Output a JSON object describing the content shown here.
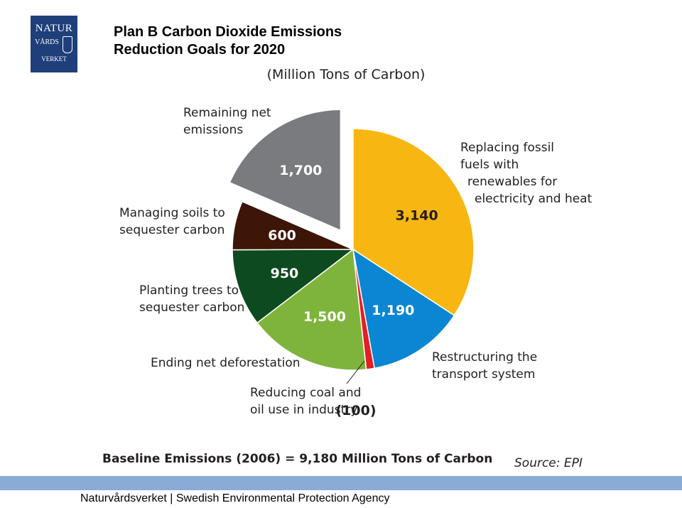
{
  "logo": {
    "line1": "NATUR",
    "line2": "VÅRDS",
    "line3": "VERKET"
  },
  "title_line1": "Plan B Carbon Dioxide Emissions",
  "title_line2": "Reduction Goals for 2020",
  "footer": "Naturvårdsverket | Swedish Environmental Protection Agency",
  "colors": {
    "footer_bar": "#8aabd6",
    "logo_bg": "#1f3f7a"
  },
  "chart_data": {
    "type": "pie",
    "subtitle": "(Million Tons of Carbon)",
    "baseline": "Baseline Emissions (2006) = 9,180 Million Tons of Carbon",
    "source": "Source: EPI",
    "slices": [
      {
        "label": "Replacing fossil fuels with renewables for electricity and heat",
        "label_lines": [
          "Replacing fossil",
          "fuels with",
          "renewables for",
          "electricity and heat"
        ],
        "value": 3140,
        "value_label": "3,140",
        "color": "#f7b612",
        "value_color": "#231f20"
      },
      {
        "label": "Restructuring the transport system",
        "label_lines": [
          "Restructuring the",
          "transport system"
        ],
        "value": 1190,
        "value_label": "1,190",
        "color": "#0a86d3",
        "value_color": "#ffffff"
      },
      {
        "label": "Reducing coal and oil use in industry",
        "label_lines": [
          "Reducing coal and",
          "oil use in industry"
        ],
        "value": 100,
        "value_label": "(100)",
        "color": "#e31e24",
        "value_color": "#231f20"
      },
      {
        "label": "Ending net deforestation",
        "label_lines": [
          "Ending net deforestation"
        ],
        "value": 1500,
        "value_label": "1,500",
        "color": "#7fb43c",
        "value_color": "#ffffff"
      },
      {
        "label": "Planting trees to sequester carbon",
        "label_lines": [
          "Planting trees to",
          "sequester carbon"
        ],
        "value": 950,
        "value_label": "950",
        "color": "#0e4a1f",
        "value_color": "#ffffff"
      },
      {
        "label": "Managing soils to sequester carbon",
        "label_lines": [
          "Managing soils to",
          "sequester carbon"
        ],
        "value": 600,
        "value_label": "600",
        "color": "#3d1607",
        "value_color": "#ffffff"
      },
      {
        "label": "Remaining net emissions",
        "label_lines": [
          "Remaining net",
          "emissions"
        ],
        "value": 1700,
        "value_label": "1,700",
        "color": "#7a7b7e",
        "value_color": "#ffffff",
        "exploded": true
      }
    ]
  }
}
